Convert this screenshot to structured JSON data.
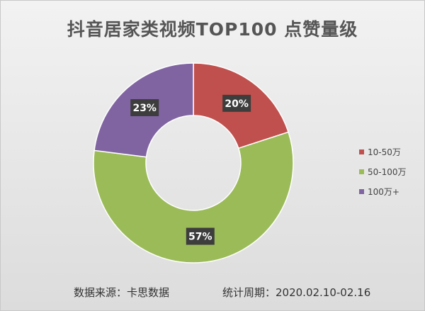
{
  "chart_data": {
    "type": "pie",
    "variant": "donut",
    "title": "抖音居家类视频TOP100  点赞量级",
    "series": [
      {
        "name": "10-50万",
        "value": 20,
        "label": "20%",
        "color": "#c0504d"
      },
      {
        "name": "50-100万",
        "value": 57,
        "label": "57%",
        "color": "#9bbb59"
      },
      {
        "name": "100万+",
        "value": 23,
        "label": "23%",
        "color": "#8064a2"
      }
    ],
    "legend_position": "right",
    "start_angle_deg": 0,
    "direction": "clockwise"
  },
  "footer": {
    "source": "数据来源：卡思数据",
    "period": "统计周期：2020.02.10-02.16"
  }
}
